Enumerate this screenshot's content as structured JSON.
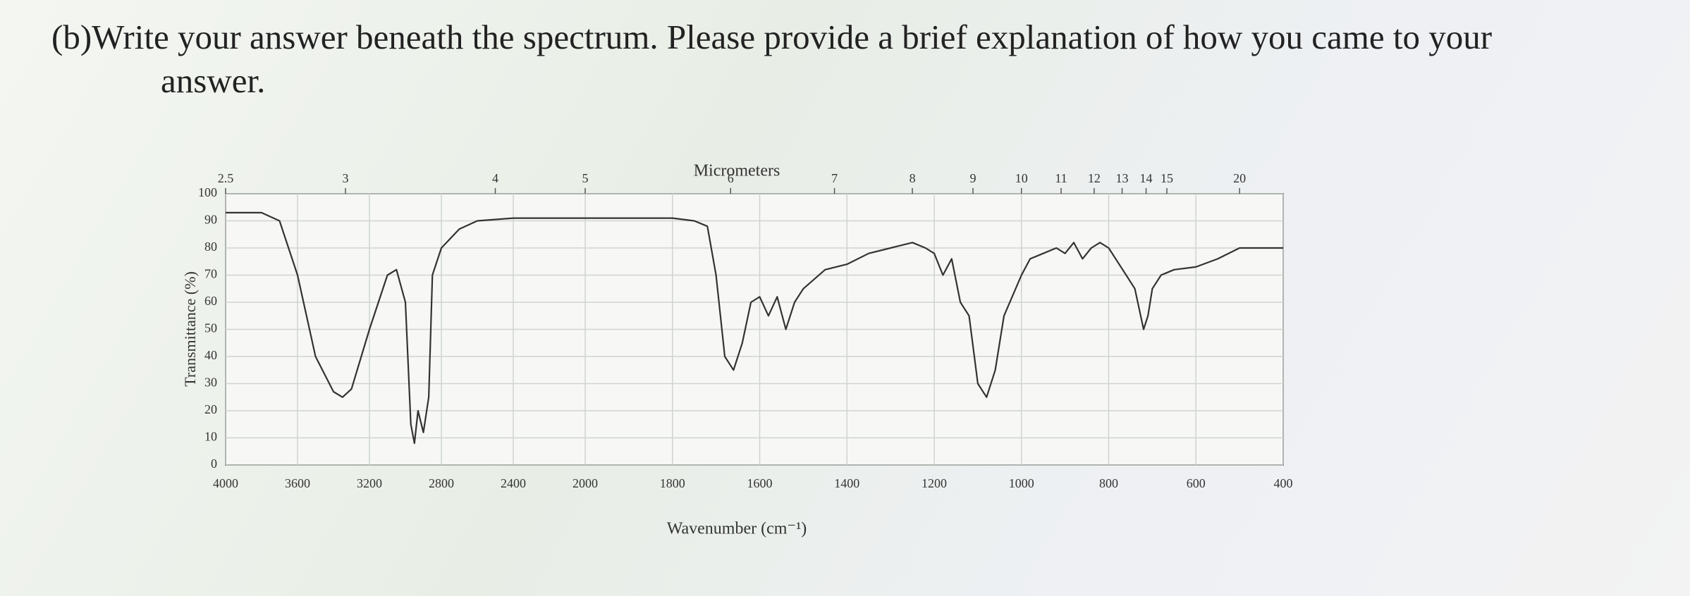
{
  "question": "(b)Write your answer beneath the spectrum. Please provide a brief explanation of how you came to your answer.",
  "chart_data": {
    "type": "line",
    "xlabel": "Wavenumber (cm⁻¹)",
    "ylabel": "Transmittance (%)",
    "x2label": "Micrometers",
    "x": [
      4000,
      3800,
      3700,
      3600,
      3500,
      3400,
      3350,
      3300,
      3200,
      3100,
      3050,
      3000,
      2970,
      2950,
      2930,
      2900,
      2870,
      2850,
      2800,
      2700,
      2600,
      2400,
      2200,
      2000,
      1900,
      1800,
      1750,
      1720,
      1700,
      1680,
      1660,
      1640,
      1620,
      1600,
      1580,
      1560,
      1540,
      1520,
      1500,
      1450,
      1400,
      1350,
      1300,
      1250,
      1220,
      1200,
      1180,
      1160,
      1140,
      1120,
      1100,
      1080,
      1060,
      1040,
      1000,
      980,
      950,
      920,
      900,
      880,
      860,
      840,
      820,
      800,
      780,
      760,
      740,
      720,
      710,
      700,
      680,
      650,
      600,
      550,
      500,
      450,
      400
    ],
    "values": [
      93,
      93,
      90,
      70,
      40,
      27,
      25,
      28,
      50,
      70,
      72,
      60,
      15,
      8,
      20,
      12,
      25,
      70,
      80,
      87,
      90,
      91,
      91,
      91,
      91,
      91,
      90,
      88,
      70,
      40,
      35,
      45,
      60,
      62,
      55,
      62,
      50,
      60,
      65,
      72,
      74,
      78,
      80,
      82,
      80,
      78,
      70,
      76,
      60,
      55,
      30,
      25,
      35,
      55,
      70,
      76,
      78,
      80,
      78,
      82,
      76,
      80,
      82,
      80,
      75,
      70,
      65,
      50,
      55,
      65,
      70,
      72,
      73,
      76,
      80,
      80,
      80
    ],
    "color": "#333333",
    "xlim": [
      4000,
      400
    ],
    "xticks": [
      4000,
      3600,
      3200,
      2800,
      2400,
      2000,
      1800,
      1600,
      1400,
      1200,
      1000,
      800,
      600,
      400
    ],
    "x2ticks": [
      2.5,
      3,
      4,
      5,
      6,
      7,
      8,
      9,
      10,
      11,
      12,
      13,
      14,
      15,
      20
    ],
    "ylim": [
      0,
      100
    ],
    "yticks": [
      0,
      10,
      20,
      30,
      40,
      50,
      60,
      70,
      80,
      90,
      100
    ],
    "grid": true
  }
}
